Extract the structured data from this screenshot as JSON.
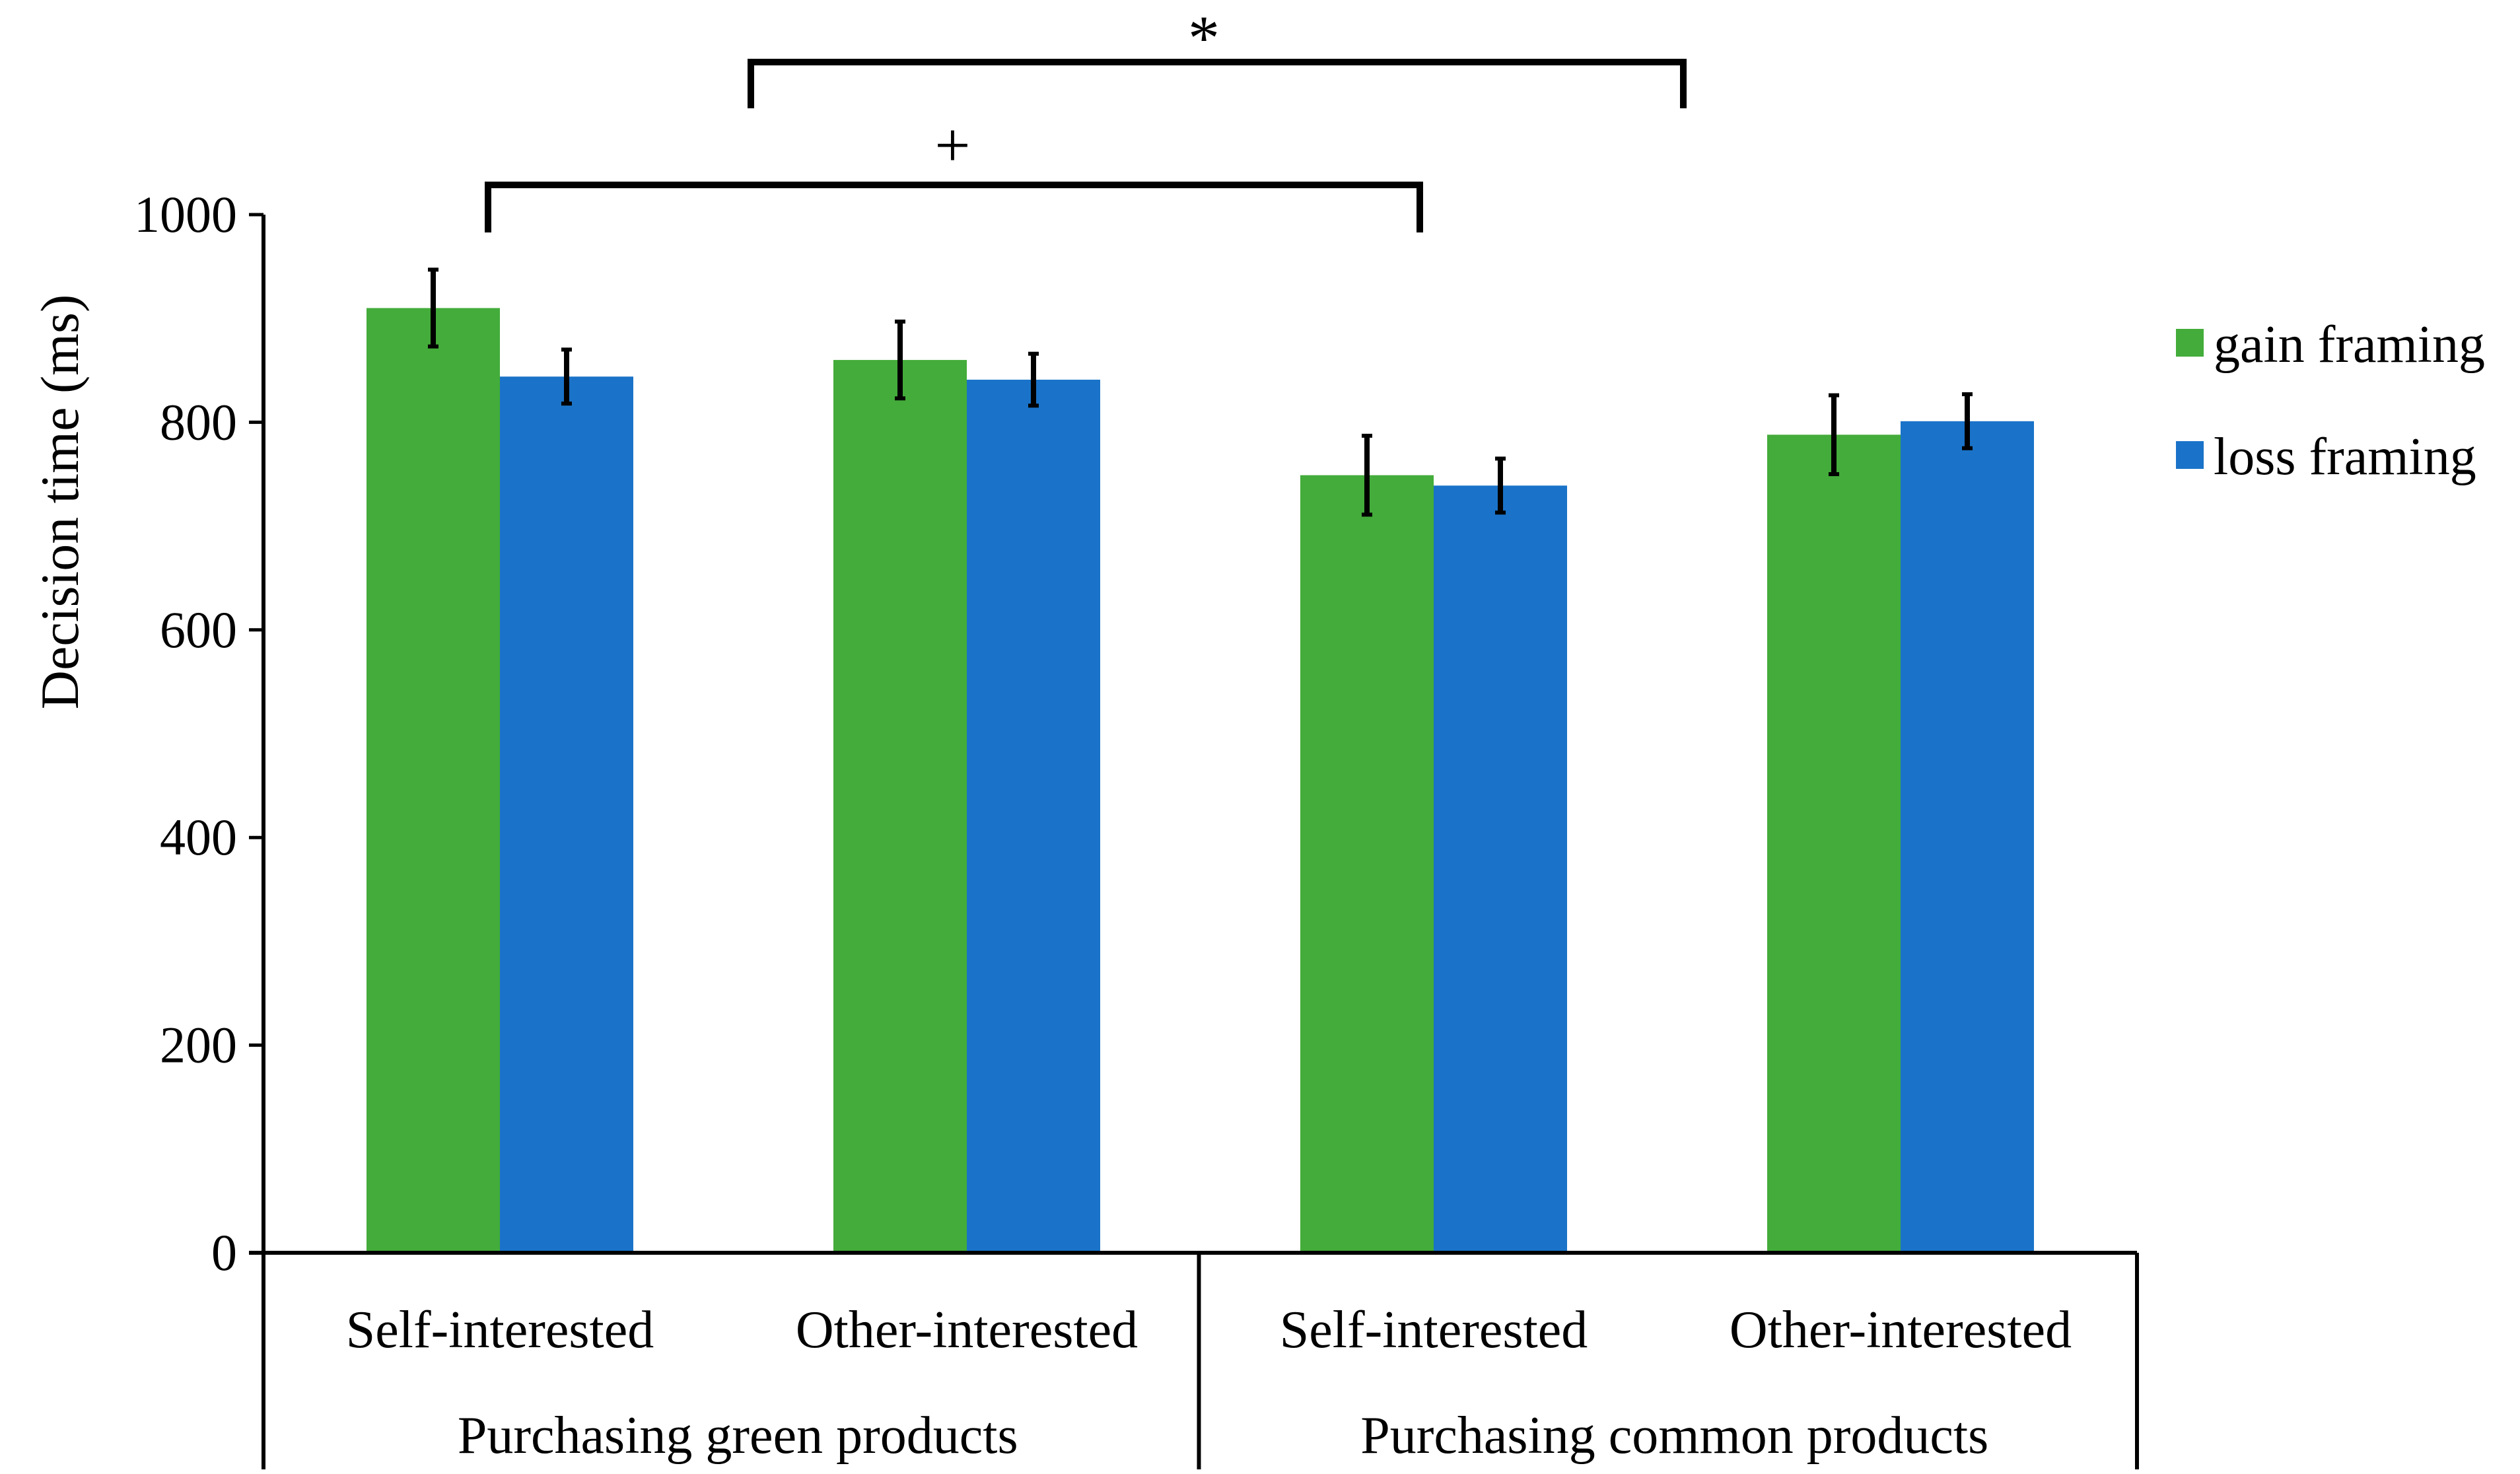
{
  "chart_data": {
    "type": "bar",
    "title": "",
    "xlabel": "",
    "ylabel": "Decision time (ms)",
    "ylim": [
      0,
      1000
    ],
    "yticks": [
      0,
      200,
      400,
      600,
      800,
      1000
    ],
    "grid": false,
    "legend_position": "right",
    "groups": [
      {
        "label": "Purchasing green products",
        "categories": [
          "Self-interested",
          "Other-interested"
        ]
      },
      {
        "label": "Purchasing common products",
        "categories": [
          "Self-interested",
          "Other-interested"
        ]
      }
    ],
    "categories": [
      "Self-interested",
      "Other-interested",
      "Self-interested",
      "Other-interested"
    ],
    "series": [
      {
        "name": "gain framing",
        "color": "#43AC3A",
        "values": [
          910,
          860,
          749,
          788
        ],
        "errors": [
          37,
          37,
          38,
          38
        ]
      },
      {
        "name": "loss framing",
        "color": "#1A73C8",
        "values": [
          844,
          841,
          739,
          801
        ],
        "errors": [
          26,
          25,
          26,
          26
        ]
      }
    ],
    "annotations": [
      {
        "label": "+",
        "from_bar": [
          0,
          0
        ],
        "to_bar": [
          2,
          0
        ]
      },
      {
        "label": "*",
        "from_group": 1,
        "to_group": 2
      }
    ]
  }
}
